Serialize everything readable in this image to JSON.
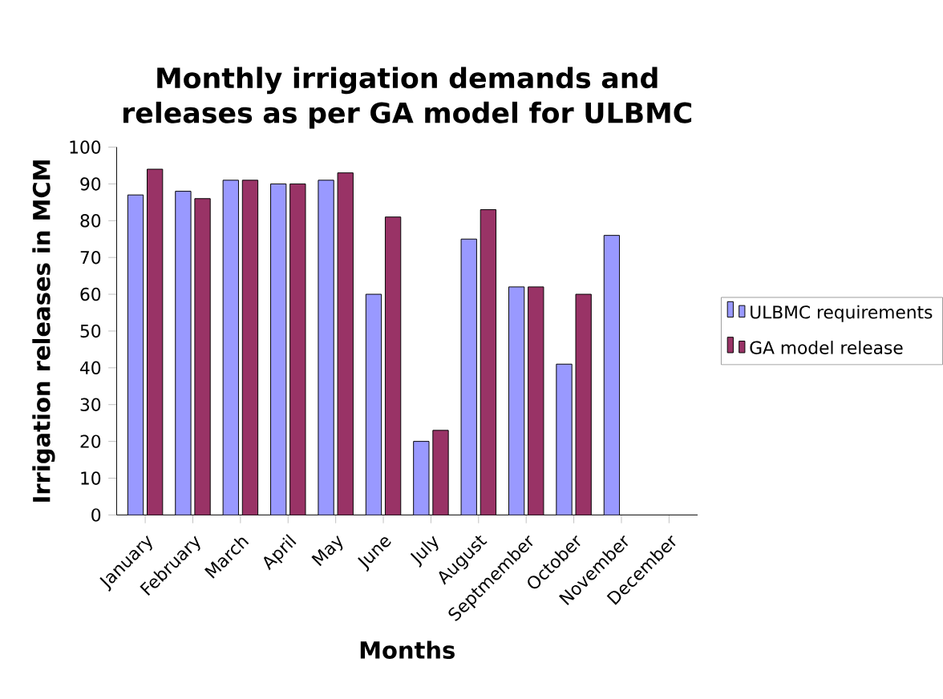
{
  "chart_data": {
    "type": "bar",
    "title": "Monthly irrigation demands and releases as per GA model for ULBMC",
    "xlabel": "Months",
    "ylabel": "Irrigation releases in MCM",
    "categories": [
      "January",
      "February",
      "March",
      "April",
      "May",
      "June",
      "July",
      "August",
      "Septmember",
      "October",
      "November",
      "December"
    ],
    "series": [
      {
        "name": "ULBMC requirements",
        "color": "#9999ff",
        "values": [
          87,
          88,
          91,
          90,
          91,
          60,
          20,
          75,
          62,
          41,
          76,
          null
        ]
      },
      {
        "name": "GA model release",
        "color": "#993366",
        "values": [
          94,
          86,
          91,
          90,
          93,
          81,
          23,
          83,
          62,
          60,
          null,
          null
        ]
      }
    ],
    "ylim": [
      0,
      100
    ],
    "yticks": [
      0,
      10,
      20,
      30,
      40,
      50,
      60,
      70,
      80,
      90,
      100
    ],
    "legend": "right"
  }
}
